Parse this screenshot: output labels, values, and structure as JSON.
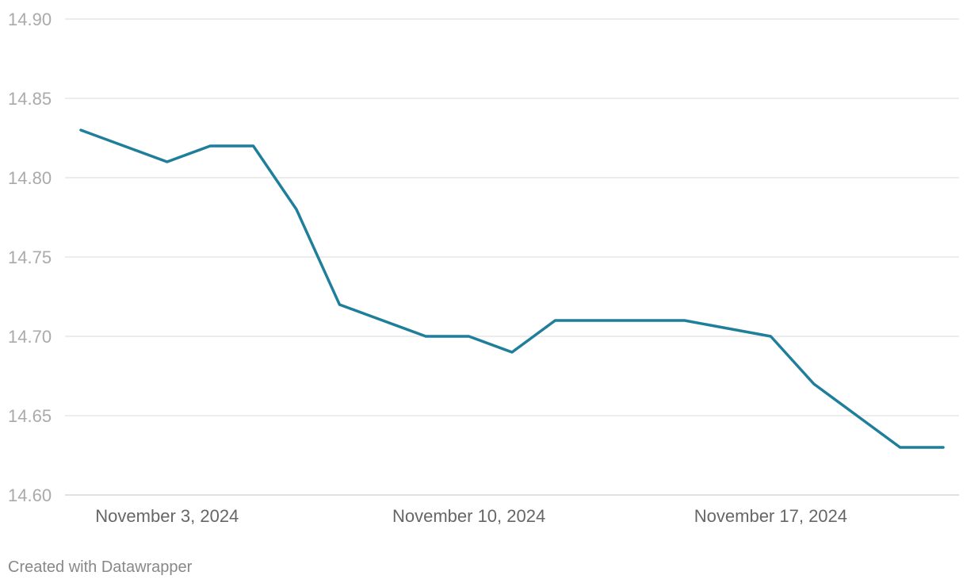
{
  "chart_data": {
    "type": "line",
    "title": "",
    "xlabel": "",
    "ylabel": "",
    "x": [
      "2024-11-01",
      "2024-11-02",
      "2024-11-03",
      "2024-11-04",
      "2024-11-05",
      "2024-11-06",
      "2024-11-07",
      "2024-11-08",
      "2024-11-09",
      "2024-11-10",
      "2024-11-11",
      "2024-11-12",
      "2024-11-13",
      "2024-11-14",
      "2024-11-15",
      "2024-11-16",
      "2024-11-17",
      "2024-11-18",
      "2024-11-19",
      "2024-11-20",
      "2024-11-21"
    ],
    "series": [
      {
        "color": "#1f7f9b",
        "values": [
          14.83,
          14.82,
          14.81,
          14.82,
          14.82,
          14.78,
          14.72,
          14.71,
          14.7,
          14.7,
          14.69,
          14.71,
          14.71,
          14.71,
          14.71,
          14.705,
          14.7,
          14.67,
          14.65,
          14.63,
          14.63
        ]
      }
    ],
    "ylim": [
      14.6,
      14.9
    ],
    "y_ticks": [
      "14.90",
      "14.85",
      "14.80",
      "14.75",
      "14.70",
      "14.65",
      "14.60"
    ],
    "x_tick_labels": [
      "November 3, 2024",
      "November 10, 2024",
      "November 17, 2024"
    ],
    "x_tick_dates": [
      "2024-11-03",
      "2024-11-10",
      "2024-11-17"
    ],
    "grid": true,
    "legend": "none"
  },
  "footer": {
    "credit": "Created with Datawrapper"
  }
}
